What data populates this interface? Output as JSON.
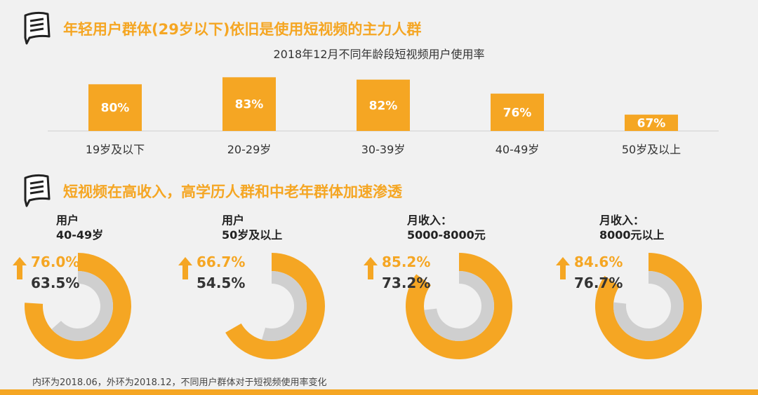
{
  "section1": {
    "title": "年轻用户群体(29岁以下)依旧是使用短视频的主力人群"
  },
  "section2": {
    "title": "短视频在高收入，高学历人群和中老年群体加速渗透"
  },
  "chart_data": [
    {
      "type": "bar",
      "title": "2018年12月不同年龄段短视频用户使用率",
      "categories": [
        "19岁及以下",
        "20-29岁",
        "30-39岁",
        "40-49岁",
        "50岁及以上"
      ],
      "values": [
        80,
        83,
        82,
        76,
        67
      ],
      "value_labels": [
        "80%",
        "83%",
        "82%",
        "76%",
        "67%"
      ],
      "ylim": [
        60,
        84
      ],
      "color": "#f5a623"
    },
    {
      "type": "pie",
      "subtype": "nested-donut",
      "groups": [
        {
          "label_line1": "用户",
          "label_line2": "40-49岁",
          "outer": 76.0,
          "inner": 63.5,
          "outer_label": "76.0%",
          "inner_label": "63.5%"
        },
        {
          "label_line1": "用户",
          "label_line2": "50岁及以上",
          "outer": 66.7,
          "inner": 54.5,
          "outer_label": "66.7%",
          "inner_label": "54.5%"
        },
        {
          "label_line1": "月收入：",
          "label_line2": "5000-8000元",
          "outer": 85.2,
          "inner": 73.2,
          "outer_label": "85.2%",
          "inner_label": "73.2%"
        },
        {
          "label_line1": "月收入：",
          "label_line2": "8000元以上",
          "outer": 84.6,
          "inner": 76.7,
          "outer_label": "84.6%",
          "inner_label": "76.7%"
        }
      ],
      "outer_color": "#f5a623",
      "inner_color": "#cfcfcf"
    }
  ],
  "footnote": "内环为2018.06，外环为2018.12，不同用户群体对于短视频使用率变化",
  "icons": {
    "section_icon": "notepad-icon",
    "trend_icon": "up-arrow-icon"
  },
  "colors": {
    "accent": "#f5a623",
    "inner_ring": "#cfcfcf",
    "background": "#f1f1f1"
  }
}
